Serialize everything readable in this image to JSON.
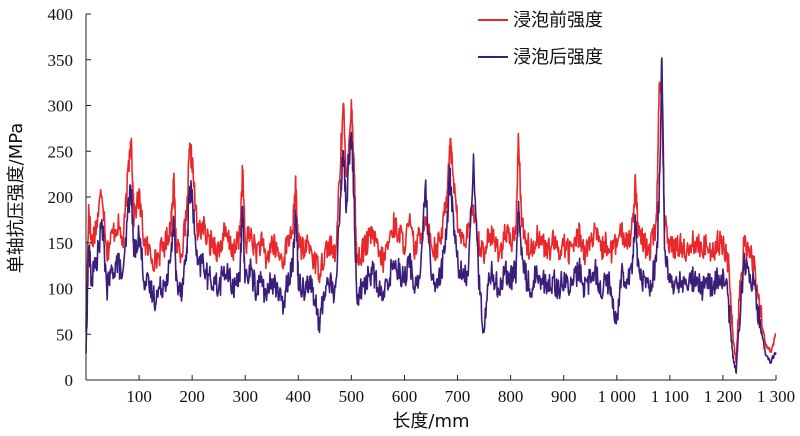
{
  "chart_data": {
    "type": "line",
    "title": "",
    "xlabel": "长度/mm",
    "ylabel": "单轴抗压强度/MPa",
    "xlim": [
      0,
      1300
    ],
    "ylim": [
      0,
      400
    ],
    "x_ticks": [
      100,
      200,
      300,
      400,
      500,
      600,
      700,
      800,
      900,
      1000,
      1100,
      1200,
      1300
    ],
    "x_tick_labels": [
      "100",
      "200",
      "300",
      "400",
      "500",
      "600",
      "700",
      "800",
      "900",
      "1 000",
      "1 100",
      "1 200",
      "1 300"
    ],
    "y_ticks": [
      0,
      50,
      100,
      150,
      200,
      250,
      300,
      350,
      400
    ],
    "y_tick_labels": [
      "0",
      "50",
      "100",
      "150",
      "200",
      "250",
      "300",
      "350",
      "400"
    ],
    "grid": false,
    "legend_position": "top-right",
    "series": [
      {
        "name": "浸泡前强度",
        "color": "#e8282b",
        "x": [
          0,
          5,
          10,
          20,
          30,
          40,
          50,
          60,
          70,
          80,
          85,
          90,
          100,
          110,
          120,
          130,
          140,
          150,
          160,
          165,
          170,
          180,
          190,
          195,
          200,
          210,
          220,
          230,
          240,
          250,
          260,
          270,
          280,
          290,
          295,
          300,
          310,
          320,
          330,
          340,
          350,
          360,
          370,
          380,
          390,
          395,
          400,
          410,
          420,
          430,
          440,
          450,
          460,
          470,
          480,
          485,
          490,
          500,
          505,
          510,
          520,
          530,
          540,
          550,
          560,
          570,
          580,
          590,
          600,
          610,
          620,
          630,
          640,
          650,
          660,
          670,
          680,
          685,
          690,
          700,
          710,
          720,
          730,
          740,
          750,
          760,
          770,
          780,
          790,
          800,
          810,
          815,
          820,
          830,
          840,
          850,
          860,
          870,
          880,
          890,
          900,
          910,
          920,
          930,
          940,
          950,
          960,
          970,
          980,
          990,
          1000,
          1010,
          1020,
          1030,
          1035,
          1040,
          1050,
          1060,
          1070,
          1075,
          1080,
          1085,
          1090,
          1100,
          1110,
          1120,
          1130,
          1140,
          1150,
          1160,
          1170,
          1180,
          1190,
          1200,
          1210,
          1215,
          1220,
          1225,
          1230,
          1240,
          1250,
          1260,
          1270,
          1280,
          1290,
          1300
        ],
        "values": [
          60,
          190,
          150,
          170,
          210,
          140,
          160,
          170,
          150,
          230,
          270,
          180,
          200,
          150,
          140,
          130,
          140,
          150,
          170,
          220,
          150,
          140,
          180,
          250,
          240,
          160,
          170,
          150,
          150,
          140,
          160,
          150,
          140,
          160,
          230,
          150,
          160,
          140,
          150,
          130,
          150,
          140,
          130,
          150,
          170,
          210,
          150,
          140,
          150,
          130,
          120,
          140,
          150,
          130,
          250,
          300,
          220,
          300,
          240,
          130,
          140,
          150,
          160,
          140,
          130,
          150,
          170,
          160,
          150,
          170,
          140,
          160,
          180,
          150,
          140,
          160,
          200,
          260,
          240,
          170,
          150,
          160,
          190,
          150,
          140,
          160,
          150,
          140,
          160,
          150,
          160,
          270,
          180,
          150,
          140,
          160,
          150,
          140,
          150,
          140,
          150,
          140,
          150,
          160,
          140,
          150,
          160,
          140,
          150,
          140,
          150,
          160,
          150,
          170,
          220,
          160,
          150,
          140,
          160,
          170,
          330,
          300,
          170,
          150,
          140,
          150,
          140,
          150,
          150,
          140,
          150,
          140,
          150,
          150,
          130,
          80,
          40,
          20,
          80,
          150,
          140,
          120,
          80,
          40,
          30,
          50
        ]
      },
      {
        "name": "浸泡后强度",
        "color": "#3b1d7a",
        "x": [
          0,
          5,
          10,
          20,
          30,
          40,
          50,
          60,
          70,
          80,
          85,
          90,
          100,
          110,
          120,
          130,
          140,
          150,
          160,
          165,
          170,
          180,
          190,
          195,
          200,
          210,
          220,
          230,
          240,
          250,
          260,
          270,
          280,
          290,
          295,
          300,
          310,
          320,
          330,
          340,
          350,
          360,
          370,
          380,
          390,
          395,
          400,
          410,
          420,
          430,
          440,
          450,
          460,
          470,
          480,
          485,
          490,
          500,
          505,
          510,
          520,
          530,
          540,
          550,
          560,
          570,
          580,
          590,
          600,
          610,
          620,
          630,
          640,
          650,
          660,
          670,
          680,
          685,
          690,
          700,
          710,
          720,
          730,
          740,
          750,
          760,
          770,
          780,
          790,
          800,
          810,
          815,
          820,
          830,
          840,
          850,
          860,
          870,
          880,
          890,
          900,
          910,
          920,
          930,
          940,
          950,
          960,
          970,
          980,
          990,
          1000,
          1010,
          1020,
          1030,
          1035,
          1040,
          1050,
          1060,
          1070,
          1075,
          1080,
          1085,
          1090,
          1100,
          1110,
          1120,
          1130,
          1140,
          1150,
          1160,
          1170,
          1180,
          1190,
          1200,
          1210,
          1215,
          1220,
          1225,
          1230,
          1240,
          1250,
          1260,
          1270,
          1280,
          1290,
          1300
        ],
        "values": [
          30,
          150,
          110,
          130,
          170,
          100,
          120,
          130,
          110,
          190,
          210,
          140,
          160,
          110,
          100,
          90,
          100,
          110,
          130,
          180,
          110,
          100,
          140,
          210,
          200,
          120,
          130,
          110,
          110,
          100,
          120,
          110,
          100,
          120,
          180,
          110,
          120,
          100,
          110,
          90,
          110,
          100,
          80,
          110,
          130,
          190,
          110,
          100,
          110,
          90,
          60,
          100,
          110,
          90,
          210,
          250,
          190,
          270,
          200,
          90,
          100,
          110,
          120,
          100,
          90,
          110,
          130,
          120,
          110,
          130,
          100,
          120,
          210,
          110,
          100,
          120,
          160,
          230,
          190,
          130,
          110,
          120,
          240,
          110,
          50,
          120,
          110,
          100,
          120,
          110,
          120,
          190,
          140,
          110,
          100,
          120,
          110,
          100,
          110,
          100,
          110,
          100,
          110,
          120,
          100,
          110,
          120,
          100,
          110,
          100,
          60,
          120,
          110,
          130,
          180,
          120,
          110,
          100,
          120,
          130,
          200,
          355,
          140,
          110,
          100,
          110,
          100,
          110,
          110,
          100,
          110,
          100,
          110,
          110,
          90,
          50,
          20,
          10,
          60,
          130,
          120,
          100,
          60,
          30,
          20,
          30
        ]
      }
    ]
  }
}
